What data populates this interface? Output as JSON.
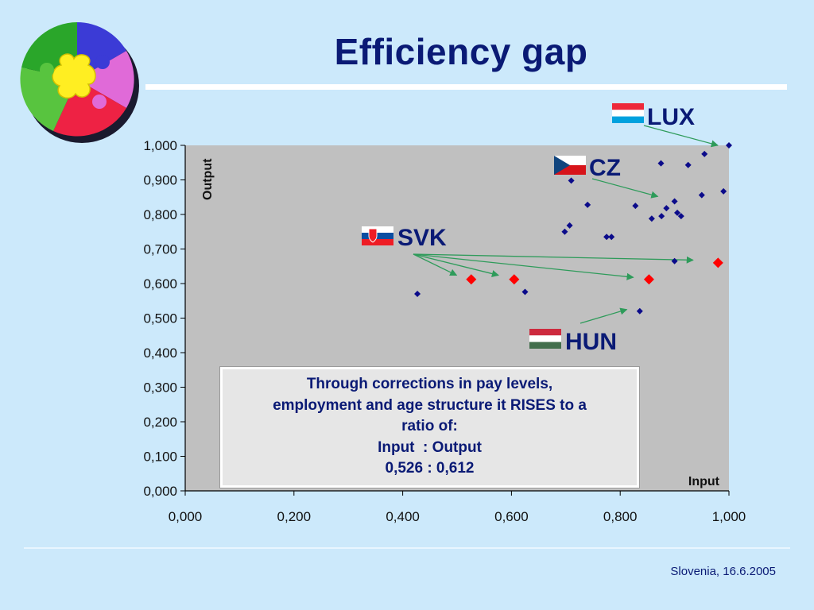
{
  "slide": {
    "title": "Efficiency gap",
    "footer": "Slovenia, 16.6.2005"
  },
  "note": {
    "lines": [
      "Through corrections in pay levels,",
      "employment and age structure it RISES to a",
      "ratio of:",
      "Input  : Output",
      "0,526 : 0,612"
    ]
  },
  "colors": {
    "plot_area": "#c0c0c0",
    "points": "#0b0b8a",
    "highlight_points": "#ff0000",
    "arrows": "#2e9b5a",
    "title_text": "#0a1a75"
  },
  "chart_data": {
    "type": "scatter",
    "title": "",
    "xlabel": "Input",
    "ylabel": "Output",
    "xlim": [
      0,
      1
    ],
    "ylim": [
      0,
      1
    ],
    "x_ticks": [
      "0,000",
      "0,200",
      "0,400",
      "0,600",
      "0,800",
      "1,000"
    ],
    "y_ticks": [
      "0,000",
      "0,100",
      "0,200",
      "0,300",
      "0,400",
      "0,500",
      "0,600",
      "0,700",
      "0,800",
      "0,900",
      "1,000"
    ],
    "grid": false,
    "series": [
      {
        "marker": "small-diamond",
        "points": [
          [
            1.0,
            1.0
          ],
          [
            0.955,
            0.975
          ],
          [
            0.875,
            0.948
          ],
          [
            0.925,
            0.943
          ],
          [
            0.71,
            0.898
          ],
          [
            0.99,
            0.867
          ],
          [
            0.95,
            0.856
          ],
          [
            0.9,
            0.838
          ],
          [
            0.74,
            0.828
          ],
          [
            0.828,
            0.825
          ],
          [
            0.885,
            0.818
          ],
          [
            0.905,
            0.805
          ],
          [
            0.912,
            0.795
          ],
          [
            0.876,
            0.795
          ],
          [
            0.858,
            0.788
          ],
          [
            0.707,
            0.768
          ],
          [
            0.698,
            0.75
          ],
          [
            0.775,
            0.735
          ],
          [
            0.784,
            0.735
          ],
          [
            0.9,
            0.665
          ],
          [
            0.625,
            0.576
          ],
          [
            0.427,
            0.57
          ],
          [
            0.836,
            0.52
          ]
        ]
      },
      {
        "marker": "large-diamond",
        "points": [
          [
            0.526,
            0.612
          ],
          [
            0.605,
            0.612
          ],
          [
            0.853,
            0.612
          ],
          [
            0.98,
            0.66
          ]
        ]
      }
    ],
    "annotations": [
      {
        "label": "LUX",
        "flag": "lux"
      },
      {
        "label": "CZ",
        "flag": "cz"
      },
      {
        "label": "SVK",
        "flag": "svk"
      },
      {
        "label": "HUN",
        "flag": "hun"
      }
    ]
  }
}
